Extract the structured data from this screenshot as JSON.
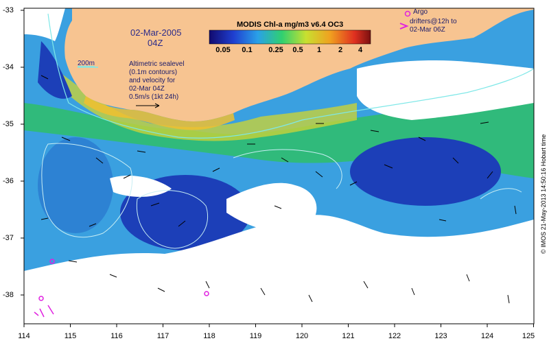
{
  "map": {
    "date": "02-Mar-2005",
    "time": "04Z",
    "colorbar": {
      "title": "MODIS Chl-a mg/m3 v6.4 OC3",
      "ticks": [
        "0.05",
        "0.1",
        "0.25",
        "0.5",
        "1",
        "2",
        "4"
      ]
    },
    "contour_label": "200m",
    "info_lines": [
      "Altimetric sealevel",
      "(0.1m contours)",
      "and velocity for",
      "02-Mar 04Z",
      "0.5m/s (1kt 24h)"
    ],
    "legend": {
      "argo_line1": "Argo",
      "argo_line2": "drifters@12h to",
      "argo_line3": "02-Mar 06Z",
      "argo_marker_color": "#e020e0"
    },
    "credit": "© IMOS 21-May-2013 14:50:16 Hobart time",
    "x_axis": {
      "ticks": [
        "114",
        "115",
        "116",
        "117",
        "118",
        "119",
        "120",
        "121",
        "122",
        "123",
        "124",
        "125"
      ],
      "range": [
        114,
        125
      ]
    },
    "y_axis": {
      "ticks": [
        "-33",
        "-34",
        "-35",
        "-36",
        "-37",
        "-38"
      ],
      "range": [
        -38.5,
        -33
      ]
    },
    "colors": {
      "land": "#f7c491",
      "ocean_low": "#1c3fb8",
      "ocean_mid": "#3aa0e0",
      "ocean_high": "#2ec35a",
      "coastal": "#c8d23a",
      "contour": "#c8eef4",
      "isobath": "#7fe8e8"
    }
  }
}
